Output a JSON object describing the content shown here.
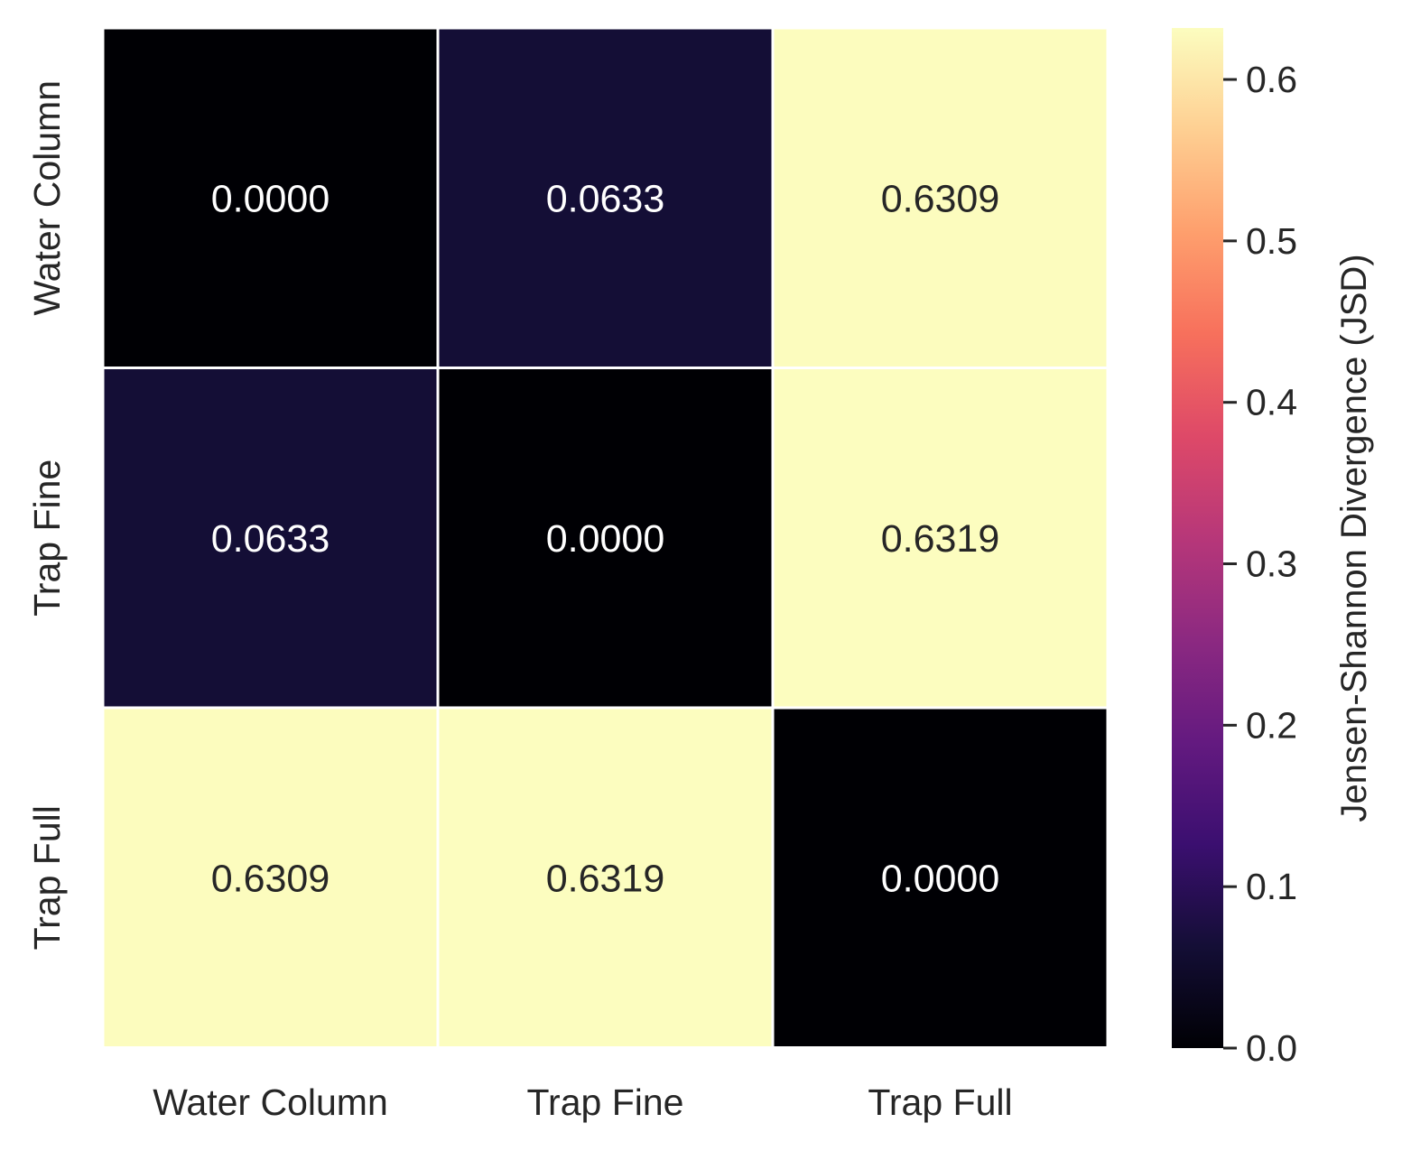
{
  "chart_data": {
    "type": "heatmap",
    "title": "",
    "xlabel": "",
    "ylabel": "",
    "x_categories": [
      "Water Column",
      "Trap Fine",
      "Trap Full"
    ],
    "y_categories": [
      "Water Column",
      "Trap Fine",
      "Trap Full"
    ],
    "values": [
      [
        0.0,
        0.0633,
        0.6309
      ],
      [
        0.0633,
        0.0,
        0.6319
      ],
      [
        0.6309,
        0.6319,
        0.0
      ]
    ],
    "value_labels": [
      [
        "0.0000",
        "0.0633",
        "0.6309"
      ],
      [
        "0.0633",
        "0.0000",
        "0.6319"
      ],
      [
        "0.6309",
        "0.6319",
        "0.0000"
      ]
    ],
    "colormap": "magma",
    "colorbar": {
      "label": "Jensen-Shannon Divergence (JSD)",
      "range": [
        0,
        0.6319
      ],
      "ticks": [
        0.0,
        0.1,
        0.2,
        0.3,
        0.4,
        0.5,
        0.6
      ],
      "tick_labels": [
        "0.0",
        "0.1",
        "0.2",
        "0.3",
        "0.4",
        "0.5",
        "0.6"
      ]
    },
    "cell_border_color": "#ffffff",
    "grid": false
  }
}
